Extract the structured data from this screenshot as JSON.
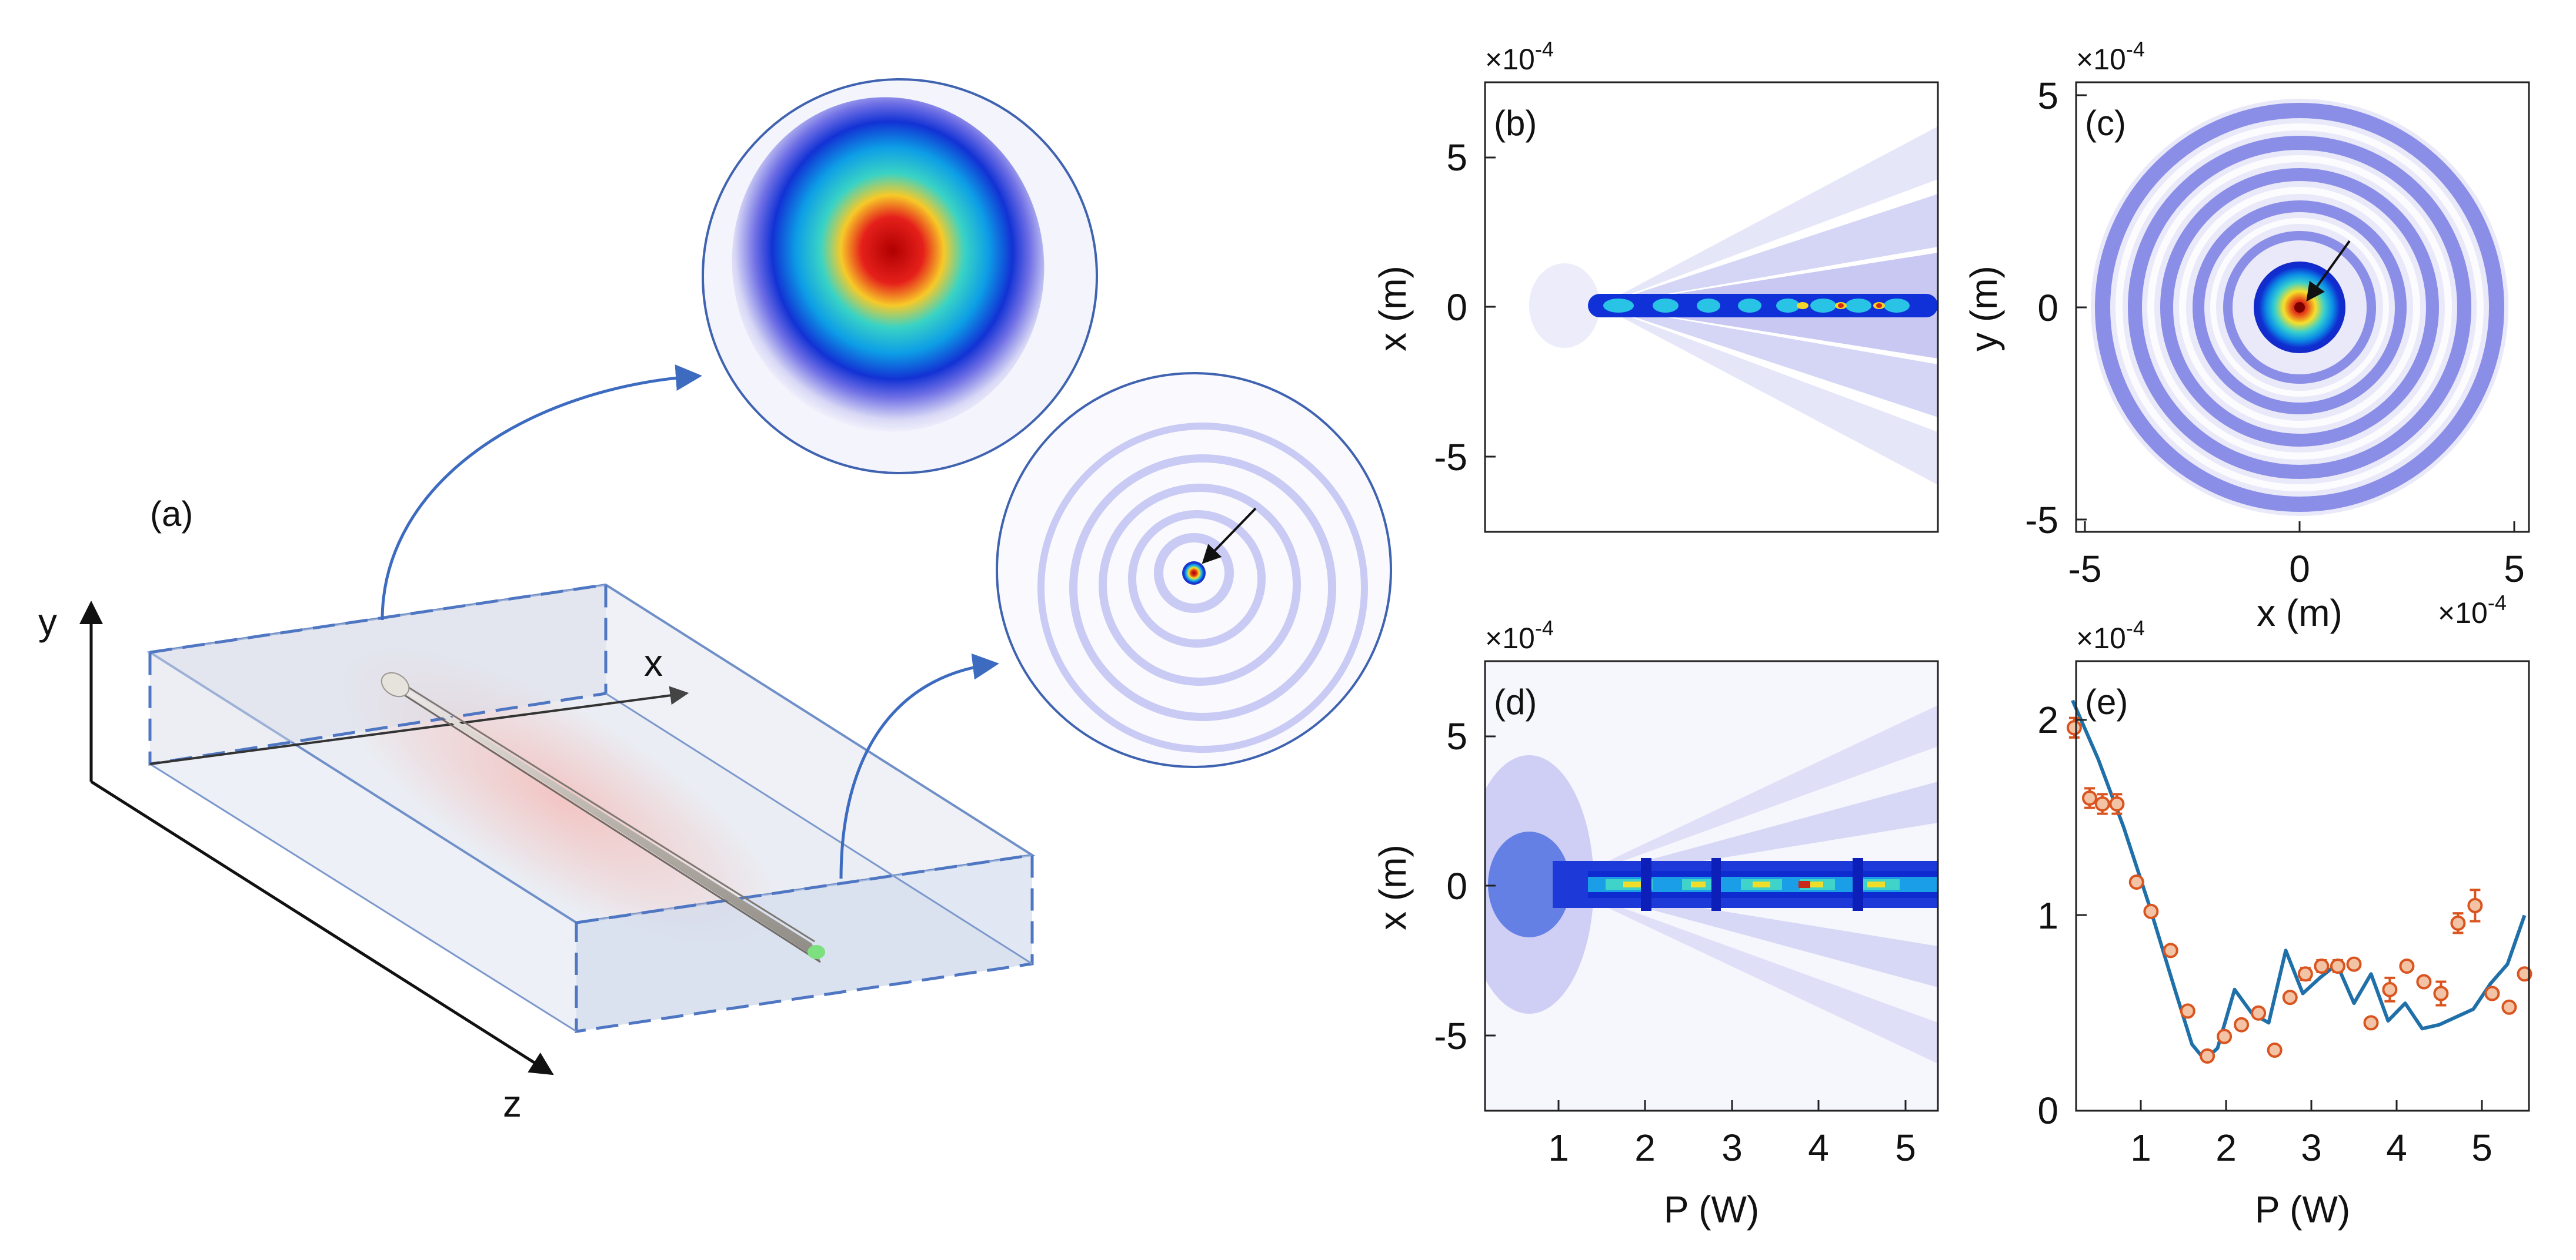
{
  "panel_a": {
    "label": "(a)",
    "axes": {
      "x": "x",
      "y": "y",
      "z": "z"
    }
  },
  "panel_b": {
    "label": "(b)",
    "multiplier": "×10",
    "multiplier_exp": "-4",
    "ylabel": "x (m)",
    "yticks": [
      "5",
      "0",
      "-5"
    ]
  },
  "panel_c": {
    "label": "(c)",
    "multiplier": "×10",
    "multiplier_exp": "-4",
    "xmult": "×10",
    "xmult_exp": "-4",
    "ylabel": "y (m)",
    "xlabel": "x (m)",
    "yticks": [
      "5",
      "0",
      "-5"
    ],
    "xticks": [
      "-5",
      "0",
      "5"
    ]
  },
  "panel_d": {
    "label": "(d)",
    "multiplier": "×10",
    "multiplier_exp": "-4",
    "ylabel": "x (m)",
    "xlabel": "P (W)",
    "yticks": [
      "5",
      "0",
      "-5"
    ],
    "xticks": [
      "1",
      "2",
      "3",
      "4",
      "5"
    ]
  },
  "panel_e": {
    "label": "(e)",
    "multiplier": "×10",
    "multiplier_exp": "-4",
    "xlabel": "P (W)",
    "yticks": [
      "2",
      "1",
      "0"
    ],
    "xticks": [
      "1",
      "2",
      "3",
      "4",
      "5"
    ]
  },
  "chart_data": [
    {
      "type": "line",
      "panel": "e",
      "xlabel": "P (W)",
      "ylabel": "",
      "xlim": [
        0.2,
        5.5
      ],
      "ylim": [
        0,
        2.3
      ],
      "series": [
        {
          "kind": "line",
          "color": "#1f6fa8",
          "x": [
            0.2,
            0.5,
            0.8,
            1.1,
            1.4,
            1.6,
            1.75,
            1.9,
            2.1,
            2.3,
            2.5,
            2.7,
            2.9,
            3.1,
            3.3,
            3.5,
            3.7,
            3.9,
            4.1,
            4.3,
            4.5,
            4.7,
            4.9,
            5.1,
            5.3,
            5.5
          ],
          "y": [
            2.1,
            1.8,
            1.45,
            1.05,
            0.62,
            0.34,
            0.26,
            0.32,
            0.62,
            0.5,
            0.45,
            0.82,
            0.6,
            0.68,
            0.75,
            0.55,
            0.7,
            0.46,
            0.55,
            0.42,
            0.44,
            0.48,
            0.52,
            0.65,
            0.75,
            1.0
          ]
        },
        {
          "kind": "scatter",
          "color": "#d9541e",
          "x": [
            0.22,
            0.4,
            0.55,
            0.72,
            0.95,
            1.12,
            1.35,
            1.55,
            1.78,
            1.98,
            2.18,
            2.38,
            2.57,
            2.75,
            2.93,
            3.12,
            3.31,
            3.5,
            3.7,
            3.92,
            4.12,
            4.32,
            4.52,
            4.72,
            4.92,
            5.12,
            5.32,
            5.5
          ],
          "y": [
            1.96,
            1.6,
            1.57,
            1.57,
            1.17,
            1.02,
            0.82,
            0.51,
            0.28,
            0.38,
            0.44,
            0.5,
            0.31,
            0.58,
            0.7,
            0.74,
            0.74,
            0.75,
            0.45,
            0.62,
            0.74,
            0.66,
            0.6,
            0.96,
            1.05,
            0.6,
            0.53,
            0.7
          ],
          "err": [
            0.05,
            0.05,
            0.05,
            0.05,
            0.02,
            0.02,
            0.02,
            0.02,
            0.02,
            0.02,
            0.02,
            0.02,
            0.01,
            0.02,
            0.03,
            0.03,
            0.03,
            0.02,
            0.02,
            0.06,
            0.02,
            0.02,
            0.06,
            0.05,
            0.08,
            0.02,
            0.02,
            0.02
          ]
        }
      ]
    }
  ]
}
